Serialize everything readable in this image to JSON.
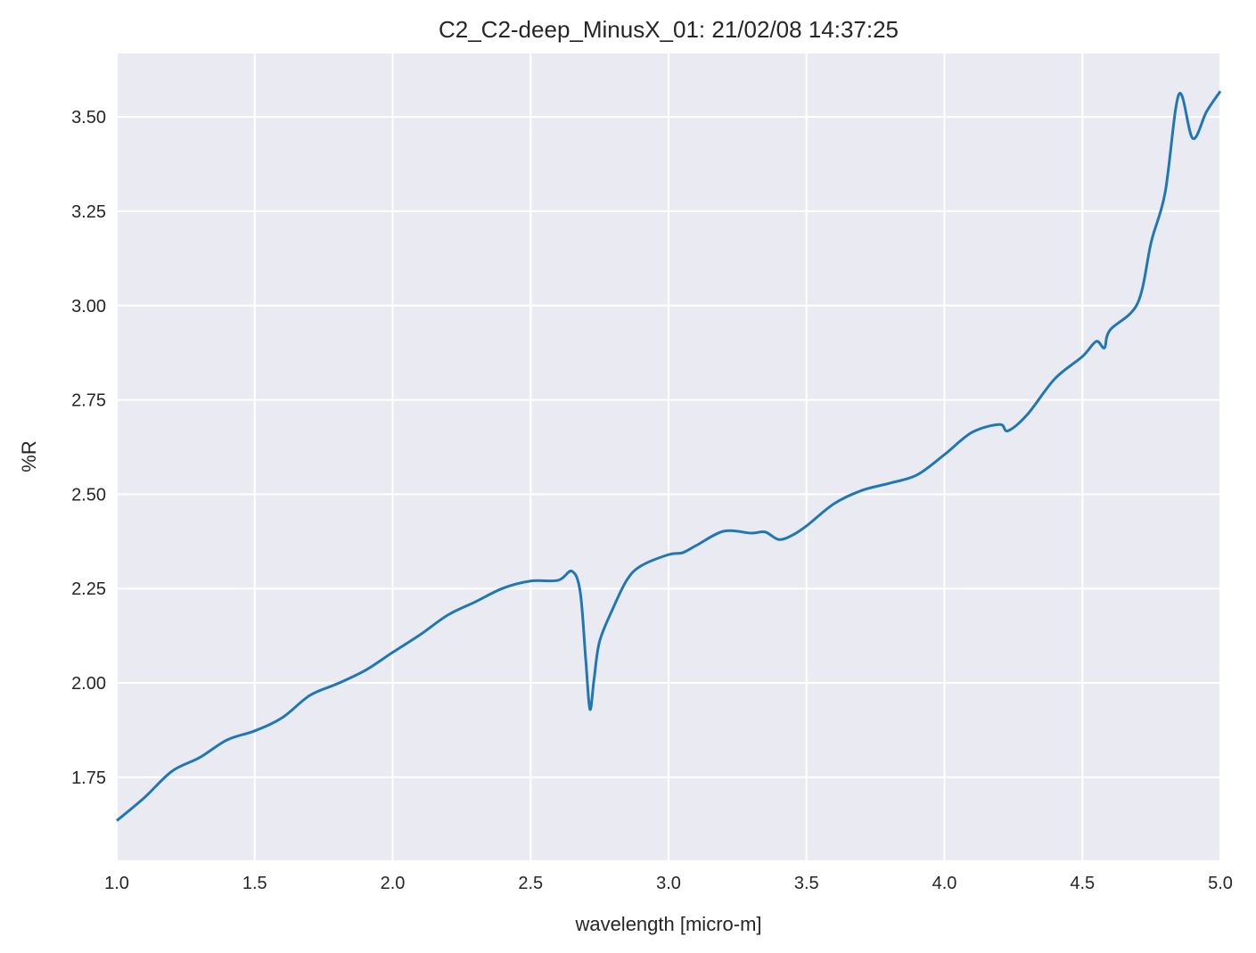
{
  "chart_data": {
    "type": "line",
    "title": "C2_C2-deep_MinusX_01:  21/02/08 14:37:25",
    "xlabel": "wavelength [micro-m]",
    "ylabel": "%R",
    "xlim": [
      1.0,
      5.0
    ],
    "ylim": [
      1.53,
      3.668
    ],
    "grid": true,
    "background": "#eaeaf2",
    "grid_color": "#ffffff",
    "line_color": "#1f77b4",
    "xticks": [
      "1.0",
      "1.5",
      "2.0",
      "2.5",
      "3.0",
      "3.5",
      "4.0",
      "4.5",
      "5.0"
    ],
    "yticks": [
      "1.75",
      "2.00",
      "2.25",
      "2.50",
      "2.75",
      "3.00",
      "3.25",
      "3.50"
    ],
    "series": [
      {
        "x": [
          1.0,
          1.1,
          1.2,
          1.3,
          1.4,
          1.5,
          1.6,
          1.7,
          1.8,
          1.9,
          2.0,
          2.1,
          2.2,
          2.3,
          2.4,
          2.5,
          2.6,
          2.65,
          2.68,
          2.7,
          2.715,
          2.73,
          2.75,
          2.8,
          2.85,
          2.9,
          3.0,
          3.05,
          3.1,
          3.2,
          3.3,
          3.35,
          3.4,
          3.45,
          3.5,
          3.6,
          3.7,
          3.8,
          3.9,
          4.0,
          4.1,
          4.2,
          4.23,
          4.3,
          4.4,
          4.5,
          4.55,
          4.58,
          4.6,
          4.7,
          4.75,
          4.8,
          4.85,
          4.9,
          4.95,
          5.0
        ],
        "y": [
          1.635,
          1.696,
          1.766,
          1.802,
          1.849,
          1.873,
          1.908,
          1.967,
          1.998,
          2.033,
          2.081,
          2.128,
          2.18,
          2.215,
          2.251,
          2.27,
          2.272,
          2.296,
          2.24,
          2.06,
          1.93,
          2.01,
          2.11,
          2.2,
          2.274,
          2.31,
          2.34,
          2.345,
          2.364,
          2.402,
          2.397,
          2.4,
          2.38,
          2.392,
          2.416,
          2.475,
          2.51,
          2.529,
          2.551,
          2.605,
          2.664,
          2.685,
          2.668,
          2.711,
          2.806,
          2.865,
          2.905,
          2.888,
          2.935,
          3.006,
          3.17,
          3.3,
          3.56,
          3.443,
          3.514,
          3.568
        ]
      }
    ]
  }
}
